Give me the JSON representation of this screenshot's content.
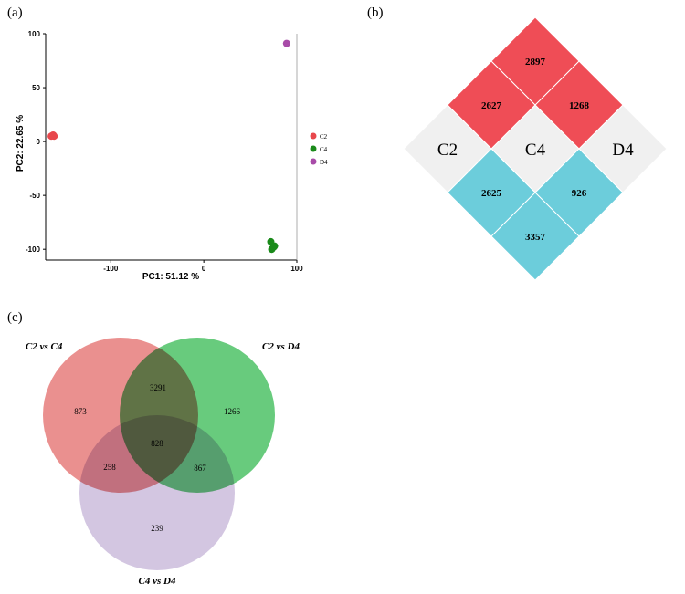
{
  "panels": {
    "a": "(a)",
    "b": "(b)",
    "c": "(c)"
  },
  "chart_data": [
    {
      "panel": "(a)",
      "type": "scatter",
      "xlabel": "PC1:  51.12 %",
      "ylabel": "PC2:  22.65 %",
      "xlim": [
        -170,
        100
      ],
      "ylim": [
        -110,
        100
      ],
      "xticks": [
        -100,
        0,
        100
      ],
      "yticks": [
        -100,
        -50,
        0,
        50,
        100
      ],
      "legend_position": "right",
      "series": [
        {
          "name": "C2",
          "color": "#e8474c",
          "points": [
            [
              -162,
              6
            ],
            [
              -161,
              5
            ],
            [
              -164,
              5
            ]
          ]
        },
        {
          "name": "C4",
          "color": "#1a8a1a",
          "points": [
            [
              72,
              -93
            ],
            [
              76,
              -97
            ],
            [
              73,
              -100
            ],
            [
              75,
              -98
            ]
          ]
        },
        {
          "name": "D4",
          "color": "#a84ba8",
          "points": [
            [
              89,
              91
            ]
          ]
        }
      ]
    },
    {
      "panel": "(b)",
      "type": "diamond-matrix",
      "groups": [
        "C2",
        "C4",
        "D4"
      ],
      "upper": {
        "color": "#ef4d56",
        "cells": [
          {
            "pair": [
              "C2",
              "C4"
            ],
            "value": "2627"
          },
          {
            "pair": [
              "C4",
              "D4"
            ],
            "value": "1268"
          },
          {
            "pair": [
              "C2",
              "D4"
            ],
            "value": "2897"
          }
        ]
      },
      "lower": {
        "color": "#6ccddb",
        "cells": [
          {
            "pair": [
              "C2",
              "C4"
            ],
            "value": "2625"
          },
          {
            "pair": [
              "C4",
              "D4"
            ],
            "value": "926"
          },
          {
            "pair": [
              "C2",
              "D4"
            ],
            "value": "3357"
          }
        ]
      },
      "diagonal_color": "#f0f0f0"
    },
    {
      "panel": "(c)",
      "type": "venn",
      "sets": [
        {
          "name": "C2 vs C4",
          "color": "#e4716f",
          "only": "873"
        },
        {
          "name": "C2 vs D4",
          "color": "#3ebd58",
          "only": "1266"
        },
        {
          "name": "C4 vs D4",
          "color": "#c7b6d8",
          "only": "239"
        }
      ],
      "intersections": {
        "C2vsC4_C2vsD4": "3291",
        "C2vsC4_C4vsD4": "258",
        "C2vsD4_C4vsD4": "867",
        "all": "828"
      }
    }
  ]
}
